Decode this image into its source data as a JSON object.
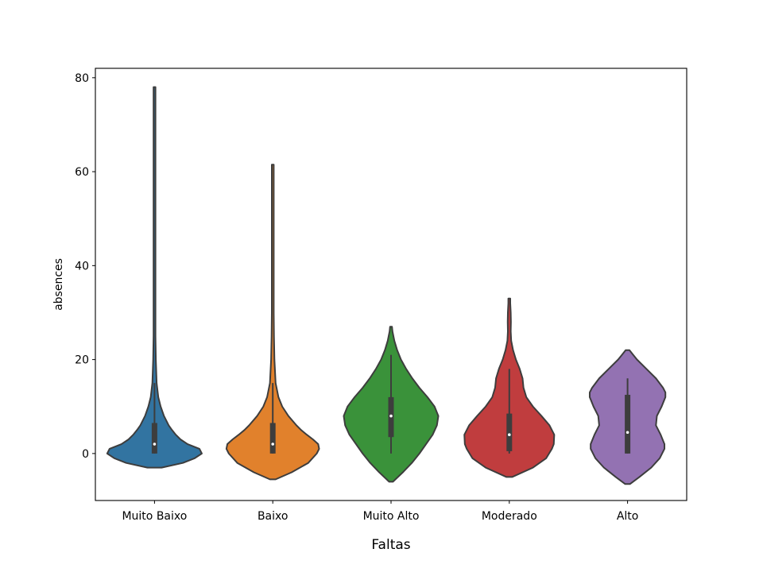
{
  "chart_data": {
    "type": "violin",
    "xlabel": "Faltas",
    "ylabel": "absences",
    "ylim": [
      -10,
      82
    ],
    "yticks": [
      0,
      20,
      40,
      60,
      80
    ],
    "grid": false,
    "categories": [
      "Muito Baixo",
      "Baixo",
      "Muito Alto",
      "Moderado",
      "Alto"
    ],
    "colors": [
      "#3274a1",
      "#e1812c",
      "#3a923a",
      "#c03d3e",
      "#9372b2"
    ],
    "violins": [
      {
        "category": "Muito Baixo",
        "min": -3,
        "max": 78,
        "whisker_low": 0,
        "whisker_high": 15,
        "q1": 0,
        "median": 2,
        "q3": 6.5,
        "profile": [
          [
            -3,
            0.15
          ],
          [
            -2,
            0.6
          ],
          [
            -1,
            0.85
          ],
          [
            0,
            1.0
          ],
          [
            1,
            0.95
          ],
          [
            2,
            0.7
          ],
          [
            3,
            0.55
          ],
          [
            4,
            0.45
          ],
          [
            5,
            0.37
          ],
          [
            6,
            0.3
          ],
          [
            8,
            0.2
          ],
          [
            10,
            0.13
          ],
          [
            12,
            0.08
          ],
          [
            15,
            0.045
          ],
          [
            20,
            0.028
          ],
          [
            25,
            0.018
          ],
          [
            30,
            0.014
          ],
          [
            40,
            0.01
          ],
          [
            60,
            0.008
          ],
          [
            78,
            0.007
          ]
        ]
      },
      {
        "category": "Baixo",
        "min": -5.5,
        "max": 61.5,
        "whisker_low": 0,
        "whisker_high": 15,
        "q1": 0,
        "median": 2,
        "q3": 6.5,
        "profile": [
          [
            -5.5,
            0.06
          ],
          [
            -4,
            0.4
          ],
          [
            -2,
            0.75
          ],
          [
            0,
            0.93
          ],
          [
            1,
            0.98
          ],
          [
            2,
            0.96
          ],
          [
            3,
            0.85
          ],
          [
            4,
            0.72
          ],
          [
            5,
            0.6
          ],
          [
            6,
            0.5
          ],
          [
            8,
            0.33
          ],
          [
            10,
            0.2
          ],
          [
            12,
            0.12
          ],
          [
            15,
            0.06
          ],
          [
            20,
            0.035
          ],
          [
            25,
            0.025
          ],
          [
            30,
            0.018
          ],
          [
            40,
            0.015
          ],
          [
            50,
            0.016
          ],
          [
            55,
            0.018
          ],
          [
            60,
            0.012
          ],
          [
            61.5,
            0.007
          ]
        ]
      },
      {
        "category": "Muito Alto",
        "min": -6,
        "max": 27,
        "whisker_low": 0,
        "whisker_high": 21,
        "q1": 3.5,
        "median": 8,
        "q3": 12,
        "profile": [
          [
            -6,
            0.04
          ],
          [
            -4,
            0.25
          ],
          [
            -2,
            0.44
          ],
          [
            0,
            0.6
          ],
          [
            2,
            0.74
          ],
          [
            4,
            0.88
          ],
          [
            6,
            0.97
          ],
          [
            8,
            1.0
          ],
          [
            10,
            0.92
          ],
          [
            12,
            0.77
          ],
          [
            14,
            0.6
          ],
          [
            16,
            0.45
          ],
          [
            18,
            0.32
          ],
          [
            20,
            0.21
          ],
          [
            22,
            0.13
          ],
          [
            24,
            0.07
          ],
          [
            26,
            0.03
          ],
          [
            27,
            0.02
          ]
        ]
      },
      {
        "category": "Moderado",
        "min": -5,
        "max": 33,
        "whisker_low": 0,
        "whisker_high": 18,
        "q1": 0.5,
        "median": 4,
        "q3": 8.5,
        "profile": [
          [
            -5,
            0.06
          ],
          [
            -3,
            0.5
          ],
          [
            -1,
            0.78
          ],
          [
            1,
            0.9
          ],
          [
            2,
            0.94
          ],
          [
            4,
            0.95
          ],
          [
            6,
            0.85
          ],
          [
            8,
            0.68
          ],
          [
            10,
            0.5
          ],
          [
            12,
            0.36
          ],
          [
            14,
            0.3
          ],
          [
            16,
            0.28
          ],
          [
            18,
            0.22
          ],
          [
            20,
            0.14
          ],
          [
            22,
            0.08
          ],
          [
            24,
            0.04
          ],
          [
            26,
            0.03
          ],
          [
            28,
            0.034
          ],
          [
            30,
            0.03
          ],
          [
            32,
            0.02
          ],
          [
            33,
            0.01
          ]
        ]
      },
      {
        "category": "Alto",
        "min": -6.5,
        "max": 22,
        "whisker_low": 0,
        "whisker_high": 16,
        "q1": 0,
        "median": 4.5,
        "q3": 12.5,
        "profile": [
          [
            -6.5,
            0.05
          ],
          [
            -5,
            0.25
          ],
          [
            -3,
            0.5
          ],
          [
            -1,
            0.68
          ],
          [
            1,
            0.78
          ],
          [
            2,
            0.78
          ],
          [
            4,
            0.7
          ],
          [
            6,
            0.6
          ],
          [
            8,
            0.62
          ],
          [
            10,
            0.72
          ],
          [
            12,
            0.8
          ],
          [
            13,
            0.8
          ],
          [
            14,
            0.75
          ],
          [
            16,
            0.6
          ],
          [
            18,
            0.4
          ],
          [
            20,
            0.2
          ],
          [
            21,
            0.12
          ],
          [
            22,
            0.04
          ]
        ]
      }
    ]
  }
}
